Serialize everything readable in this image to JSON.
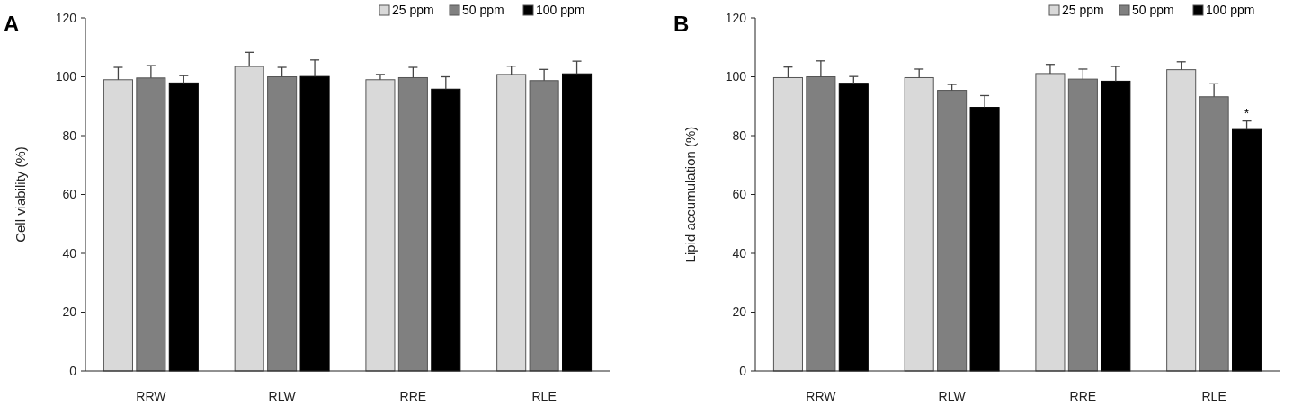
{
  "chart_data": [
    {
      "type": "bar",
      "title": "A",
      "ylabel": "Cell viability (%)",
      "categories": [
        "RRW",
        "RLW",
        "RRE",
        "RLE"
      ],
      "ylim": [
        0,
        120
      ],
      "yticks": [
        0,
        20,
        40,
        60,
        80,
        100,
        120
      ],
      "legend": "top right",
      "grid": false,
      "series": [
        {
          "name": "25 ppm",
          "color": "#d9d9d9",
          "values": [
            99,
            103.5,
            99,
            100.8
          ],
          "errors": [
            [
              99,
              103.2
            ],
            [
              103.5,
              108.3
            ],
            [
              99,
              100.8
            ],
            [
              100.8,
              103.6
            ]
          ]
        },
        {
          "name": "50 ppm",
          "color": "#808080",
          "values": [
            99.6,
            100,
            99.7,
            98.7
          ],
          "errors": [
            [
              99.6,
              103.8
            ],
            [
              100,
              103.2
            ],
            [
              99.7,
              103.2
            ],
            [
              98.7,
              102.5
            ]
          ]
        },
        {
          "name": "100 ppm",
          "color": "#000000",
          "values": [
            97.9,
            100.1,
            95.8,
            101
          ],
          "errors": [
            [
              97.9,
              100.4
            ],
            [
              100.1,
              105.7
            ],
            [
              95.8,
              100
            ],
            [
              101,
              105.3
            ]
          ]
        }
      ]
    },
    {
      "type": "bar",
      "title": "B",
      "ylabel": "Lipid accumulation (%)",
      "categories": [
        "RRW",
        "RLW",
        "RRE",
        "RLE"
      ],
      "ylim": [
        0,
        120
      ],
      "yticks": [
        0,
        20,
        40,
        60,
        80,
        100,
        120
      ],
      "legend": "top right",
      "grid": false,
      "annotations": [
        "*"
      ],
      "series": [
        {
          "name": "25 ppm",
          "color": "#d9d9d9",
          "values": [
            99.7,
            99.7,
            101.1,
            102.4
          ],
          "errors": [
            [
              99.7,
              103.3
            ],
            [
              99.7,
              102.6
            ],
            [
              101.1,
              104.2
            ],
            [
              102.4,
              105.1
            ]
          ]
        },
        {
          "name": "50 ppm",
          "color": "#808080",
          "values": [
            100,
            95.4,
            99.2,
            93.2
          ],
          "errors": [
            [
              100,
              105.4
            ],
            [
              95.4,
              97.4
            ],
            [
              99.2,
              102.6
            ],
            [
              93.2,
              97.6
            ]
          ]
        },
        {
          "name": "100 ppm",
          "color": "#000000",
          "values": [
            97.8,
            89.6,
            98.5,
            82.1
          ],
          "errors": [
            [
              97.8,
              100.1
            ],
            [
              89.6,
              93.6
            ],
            [
              98.5,
              103.5
            ],
            [
              82.1,
              85
            ]
          ]
        }
      ]
    }
  ]
}
